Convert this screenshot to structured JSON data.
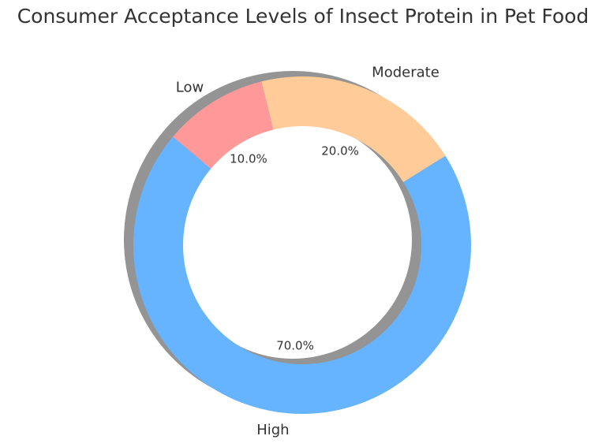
{
  "chart_data": {
    "type": "pie",
    "variant": "donut",
    "title": "Consumer Acceptance Levels of Insect Protein in Pet Food",
    "categories": [
      "High",
      "Moderate",
      "Low"
    ],
    "values": [
      70,
      20,
      10
    ],
    "value_labels": [
      "70.0%",
      "20.0%",
      "10.0%"
    ],
    "colors": [
      "#66b3ff",
      "#ffcc99",
      "#ff9999"
    ],
    "start_angle_deg": 140,
    "shadow": true,
    "legend": "none"
  }
}
